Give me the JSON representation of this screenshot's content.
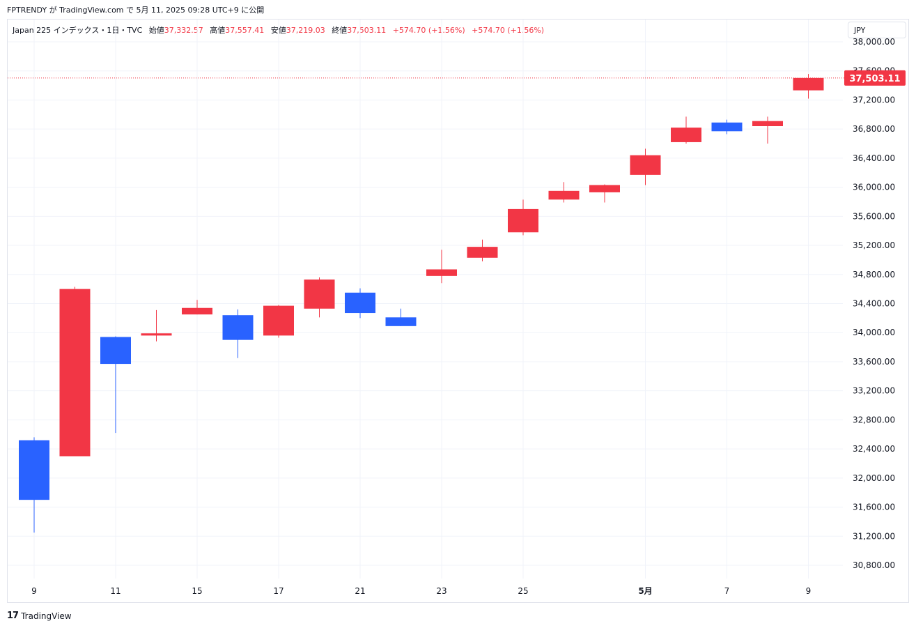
{
  "header": {
    "published": "FPTRENDY が TradingView.com で 5月 11, 2025 09:28 UTC+9 に公開"
  },
  "legend": {
    "symbol": "Japan 225 インデックス・1日・TVC",
    "open_label": "始値",
    "open": "37,332.57",
    "high_label": "高値",
    "high": "37,557.41",
    "low_label": "安値",
    "low": "37,219.03",
    "close_label": "終値",
    "close": "37,503.11",
    "change_1": "+574.70 (+1.56%)",
    "change_2": "+574.70 (+1.56%)"
  },
  "currency": "JPY",
  "footer": {
    "brand": "TradingView",
    "logo": "17"
  },
  "colors": {
    "up": "#f23645",
    "down": "#2962ff",
    "grid": "#f0f3fa",
    "text": "#131722"
  },
  "chart_data": {
    "type": "candlestick",
    "currency": "JPY",
    "ylim": [
      30600,
      38200
    ],
    "y_ticks": [
      30800,
      31200,
      31600,
      32000,
      32400,
      32800,
      33200,
      33600,
      34000,
      34400,
      34800,
      35200,
      35600,
      36000,
      36400,
      36800,
      37200,
      37600,
      38000
    ],
    "y_tick_labels": [
      "30,800.00",
      "31,200.00",
      "31,600.00",
      "32,000.00",
      "32,400.00",
      "32,800.00",
      "33,200.00",
      "33,600.00",
      "34,000.00",
      "34,400.00",
      "34,800.00",
      "35,200.00",
      "35,600.00",
      "36,000.00",
      "36,400.00",
      "36,800.00",
      "37,200.00",
      "37,600.00",
      "38,000.00"
    ],
    "x_labels": [
      {
        "index": 0,
        "text": "9"
      },
      {
        "index": 2,
        "text": "11"
      },
      {
        "index": 4,
        "text": "15"
      },
      {
        "index": 6,
        "text": "17"
      },
      {
        "index": 8,
        "text": "21"
      },
      {
        "index": 10,
        "text": "23"
      },
      {
        "index": 12,
        "text": "25"
      },
      {
        "index": 15,
        "text": "5月",
        "bold": true
      },
      {
        "index": 17,
        "text": "7"
      },
      {
        "index": 19,
        "text": "9"
      }
    ],
    "last_price": 37503.11,
    "last_price_label": "37,503.11",
    "candles": [
      {
        "o": 32520,
        "h": 32560,
        "l": 31250,
        "c": 31700
      },
      {
        "o": 32300,
        "h": 34630,
        "l": 32300,
        "c": 34600
      },
      {
        "o": 33940,
        "h": 33950,
        "l": 32620,
        "c": 33570
      },
      {
        "o": 33960,
        "h": 34310,
        "l": 33880,
        "c": 33990
      },
      {
        "o": 34250,
        "h": 34450,
        "l": 34250,
        "c": 34340
      },
      {
        "o": 34240,
        "h": 34320,
        "l": 33650,
        "c": 33900
      },
      {
        "o": 33960,
        "h": 34380,
        "l": 33930,
        "c": 34370
      },
      {
        "o": 34330,
        "h": 34760,
        "l": 34210,
        "c": 34730
      },
      {
        "o": 34550,
        "h": 34610,
        "l": 34200,
        "c": 34270
      },
      {
        "o": 34210,
        "h": 34330,
        "l": 34090,
        "c": 34090
      },
      {
        "o": 34780,
        "h": 35140,
        "l": 34680,
        "c": 34870
      },
      {
        "o": 35030,
        "h": 35280,
        "l": 34980,
        "c": 35180
      },
      {
        "o": 35380,
        "h": 35830,
        "l": 35340,
        "c": 35700
      },
      {
        "o": 35830,
        "h": 36070,
        "l": 35790,
        "c": 35950
      },
      {
        "o": 35930,
        "h": 36040,
        "l": 35790,
        "c": 36030
      },
      {
        "o": 36170,
        "h": 36530,
        "l": 36030,
        "c": 36440
      },
      {
        "o": 36620,
        "h": 36970,
        "l": 36600,
        "c": 36820
      },
      {
        "o": 36890,
        "h": 36930,
        "l": 36730,
        "c": 36770
      },
      {
        "o": 36840,
        "h": 36970,
        "l": 36600,
        "c": 36910
      },
      {
        "o": 37332.57,
        "h": 37557.41,
        "l": 37219.03,
        "c": 37503.11
      }
    ]
  }
}
